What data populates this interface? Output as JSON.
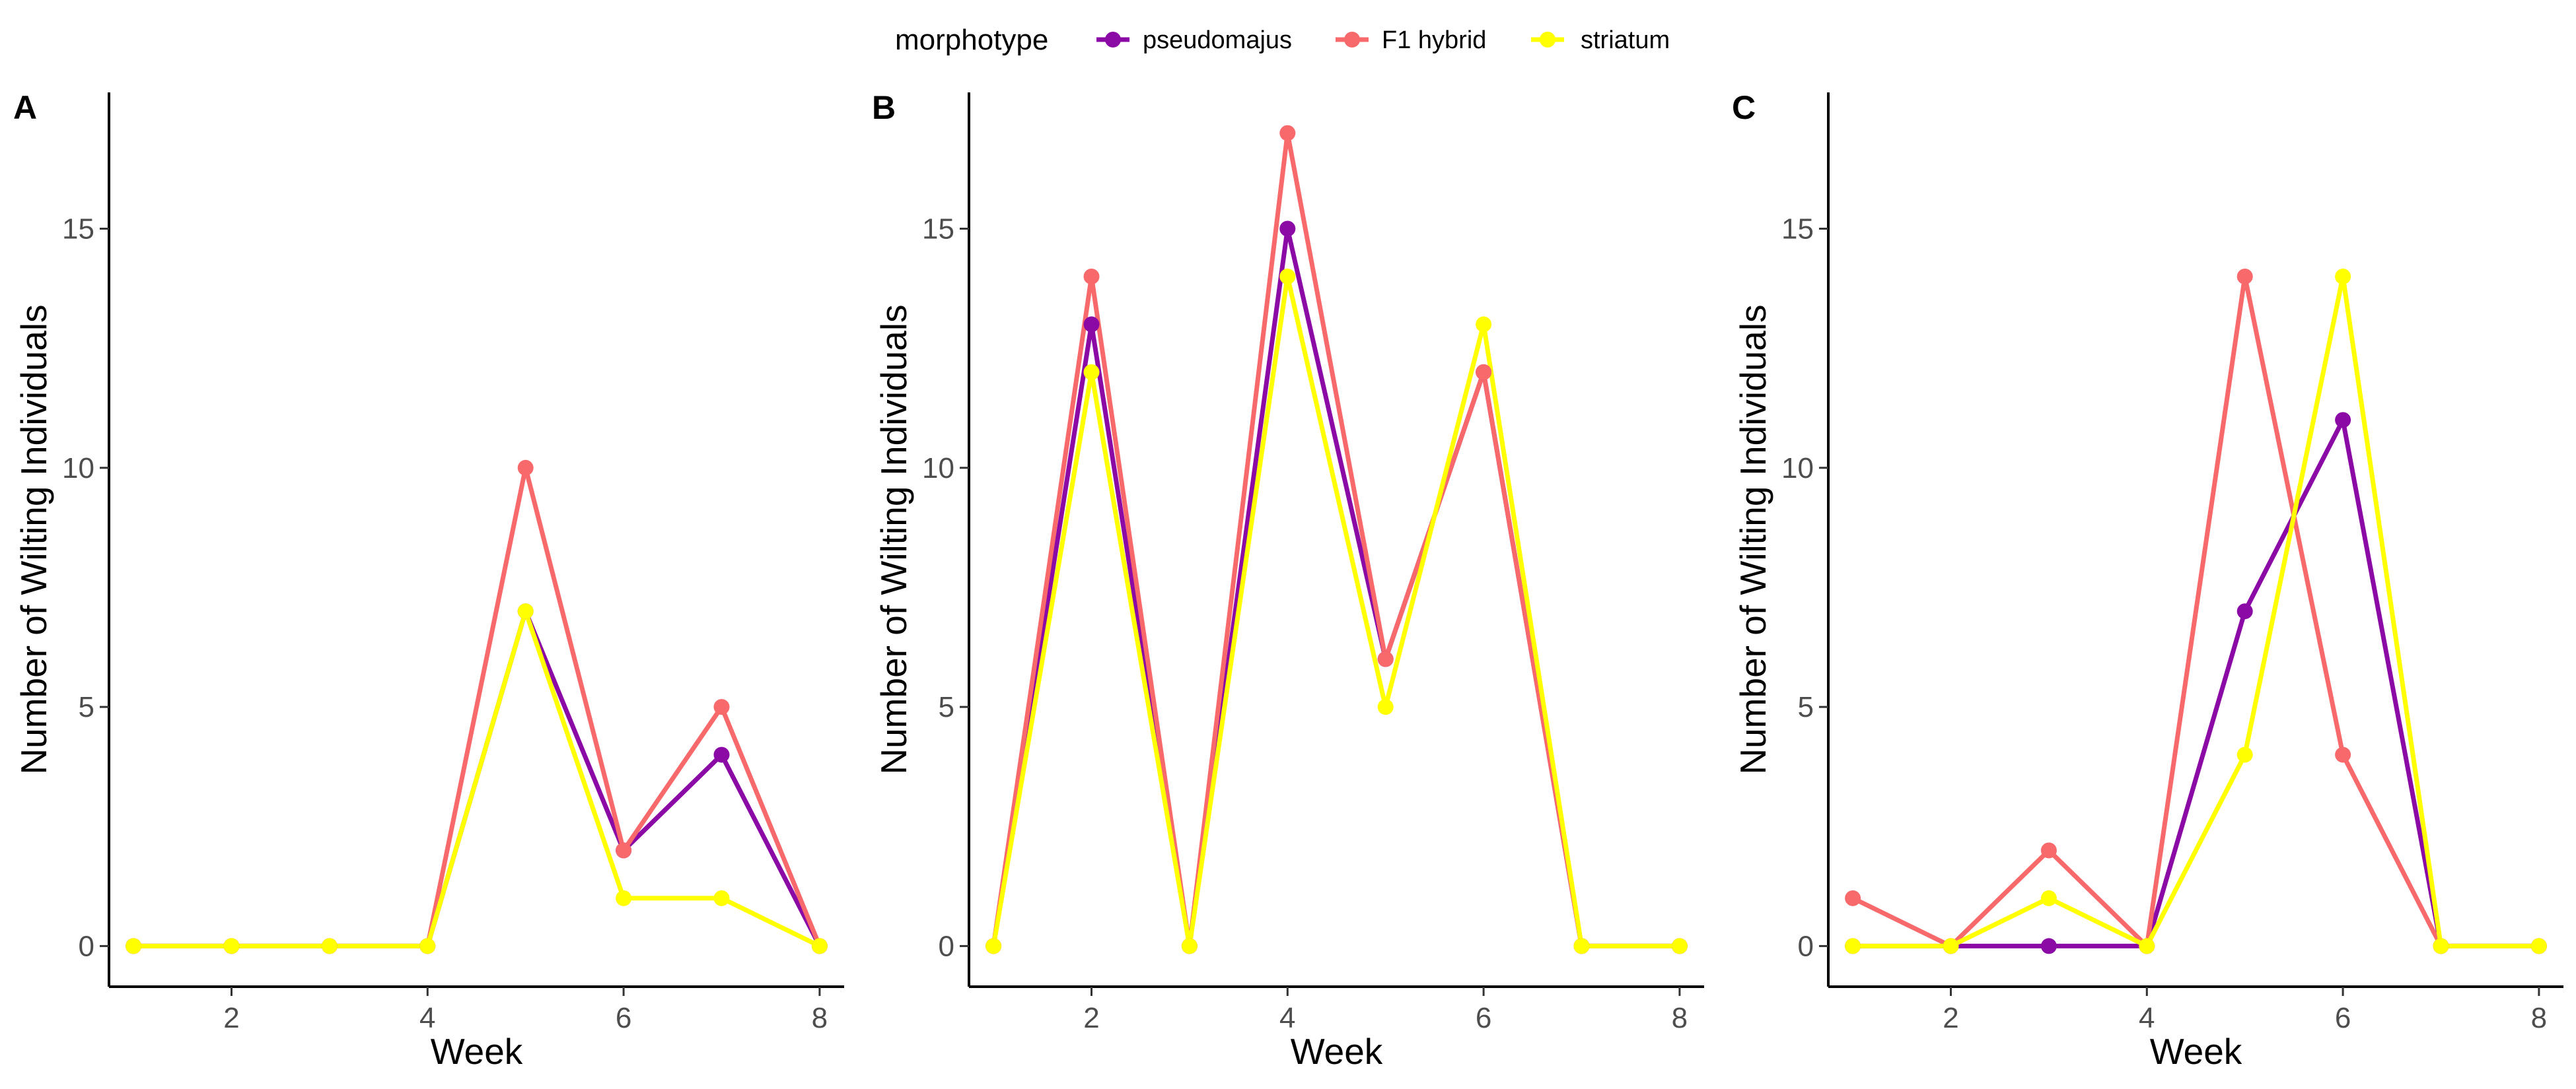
{
  "legend": {
    "title": "morphotype",
    "entries": [
      {
        "name": "pseudomajus",
        "color": "#8B0AA5"
      },
      {
        "name": "F1 hybrid",
        "color": "#F8696B"
      },
      {
        "name": "striatum",
        "color": "#FFFF00"
      }
    ]
  },
  "chart_data": [
    {
      "type": "line",
      "panel_label": "A",
      "xlabel": "Week",
      "ylabel": "Number of Wilting Individuals",
      "x": [
        1,
        2,
        3,
        4,
        5,
        6,
        7,
        8
      ],
      "xlim": [
        0.75,
        8.25
      ],
      "ylim": [
        -0.85,
        17.85
      ],
      "xticks": [
        2,
        4,
        6,
        8
      ],
      "yticks": [
        0,
        5,
        10,
        15
      ],
      "grid": false,
      "legend_position": "top",
      "series": [
        {
          "name": "pseudomajus",
          "color": "#8B0AA5",
          "values": [
            0,
            0,
            0,
            0,
            7,
            2,
            4,
            0
          ]
        },
        {
          "name": "F1 hybrid",
          "color": "#F8696B",
          "values": [
            0,
            0,
            0,
            0,
            10,
            2,
            5,
            0
          ]
        },
        {
          "name": "striatum",
          "color": "#FFFF00",
          "values": [
            0,
            0,
            0,
            0,
            7,
            1,
            1,
            0
          ]
        }
      ]
    },
    {
      "type": "line",
      "panel_label": "B",
      "xlabel": "Week",
      "ylabel": "Number of Wilting Individuals",
      "x": [
        1,
        2,
        3,
        4,
        5,
        6,
        7,
        8
      ],
      "xlim": [
        0.75,
        8.25
      ],
      "ylim": [
        -0.85,
        17.85
      ],
      "xticks": [
        2,
        4,
        6,
        8
      ],
      "yticks": [
        0,
        5,
        10,
        15
      ],
      "grid": false,
      "legend_position": "top",
      "series": [
        {
          "name": "pseudomajus",
          "color": "#8B0AA5",
          "values": [
            0,
            13,
            0,
            15,
            6,
            12,
            0,
            0
          ]
        },
        {
          "name": "F1 hybrid",
          "color": "#F8696B",
          "values": [
            0,
            14,
            0,
            17,
            6,
            12,
            0,
            0
          ]
        },
        {
          "name": "striatum",
          "color": "#FFFF00",
          "values": [
            0,
            12,
            0,
            14,
            5,
            13,
            0,
            0
          ]
        }
      ]
    },
    {
      "type": "line",
      "panel_label": "C",
      "xlabel": "Week",
      "ylabel": "Number of Wilting Individuals",
      "x": [
        1,
        2,
        3,
        4,
        5,
        6,
        7,
        8
      ],
      "xlim": [
        0.75,
        8.25
      ],
      "ylim": [
        -0.85,
        17.85
      ],
      "xticks": [
        2,
        4,
        6,
        8
      ],
      "yticks": [
        0,
        5,
        10,
        15
      ],
      "grid": false,
      "legend_position": "top",
      "series": [
        {
          "name": "pseudomajus",
          "color": "#8B0AA5",
          "values": [
            0,
            0,
            0,
            0,
            7,
            11,
            0,
            0
          ]
        },
        {
          "name": "F1 hybrid",
          "color": "#F8696B",
          "values": [
            1,
            0,
            2,
            0,
            14,
            4,
            0,
            0
          ]
        },
        {
          "name": "striatum",
          "color": "#FFFF00",
          "values": [
            0,
            0,
            1,
            0,
            4,
            14,
            0,
            0
          ]
        }
      ]
    }
  ]
}
